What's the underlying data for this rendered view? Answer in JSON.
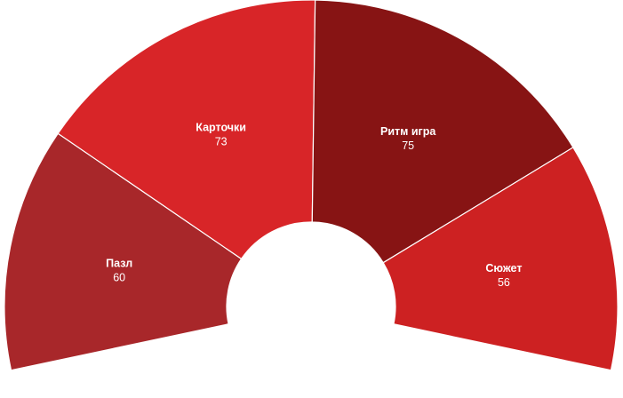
{
  "chart_data": {
    "type": "pie",
    "variant": "semi-donut",
    "slices": [
      {
        "label": "Пазл",
        "value": 60,
        "color": "#a8272a"
      },
      {
        "label": "Карточки",
        "value": 73,
        "color": "#d82528"
      },
      {
        "label": "Ритм игра",
        "value": 75,
        "color": "#871414"
      },
      {
        "label": "Сюжет",
        "value": 56,
        "color": "#cd2122"
      }
    ]
  }
}
